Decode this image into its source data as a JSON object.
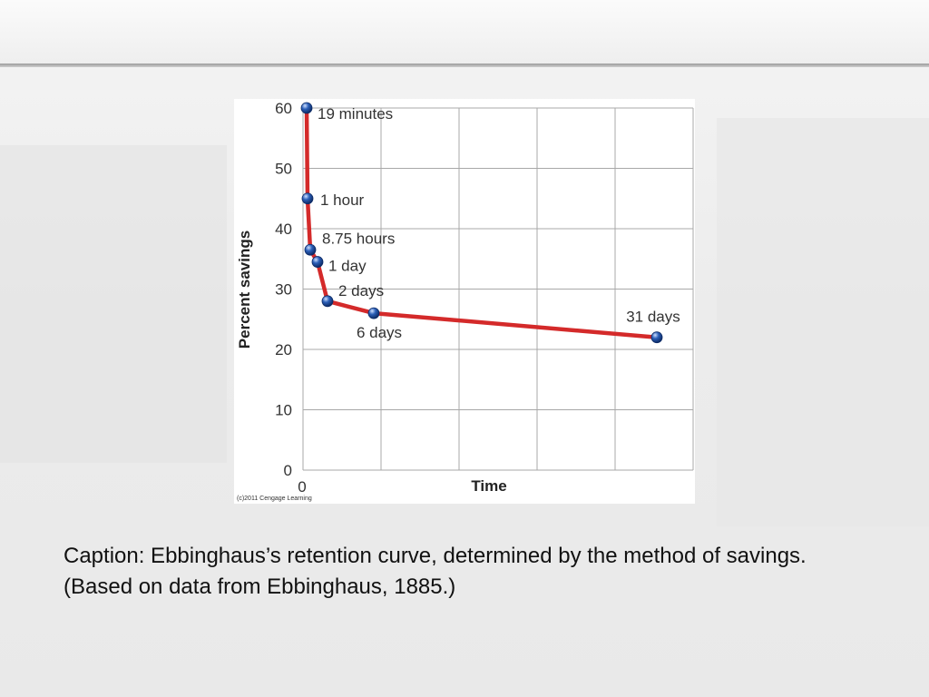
{
  "slide": {
    "caption": "Caption: Ebbinghaus’s retention curve, determined by the method of savings.  (Based on data from Ebbinghaus, 1885.)"
  },
  "colors": {
    "line": "#d42a2a",
    "marker": "#2b5fb8",
    "grid": "#a8a8a8"
  },
  "chart_data": {
    "type": "line",
    "xlabel": "Time",
    "ylabel": "Percent savings",
    "ylim": [
      0,
      60
    ],
    "y_ticks": [
      0,
      10,
      20,
      30,
      40,
      50,
      60
    ],
    "x_tick_labels": [
      "0"
    ],
    "grid": true,
    "credit": "(c)2011 Cengage Learning",
    "series": [
      {
        "points": [
          {
            "label": "19 minutes",
            "y": 60
          },
          {
            "label": "1 hour",
            "y": 45
          },
          {
            "label": "8.75 hours",
            "y": 36.5
          },
          {
            "label": "1 day",
            "y": 34.5
          },
          {
            "label": "2 days",
            "y": 28
          },
          {
            "label": "6 days",
            "y": 26
          },
          {
            "label": "31 days",
            "y": 22
          }
        ]
      }
    ]
  }
}
